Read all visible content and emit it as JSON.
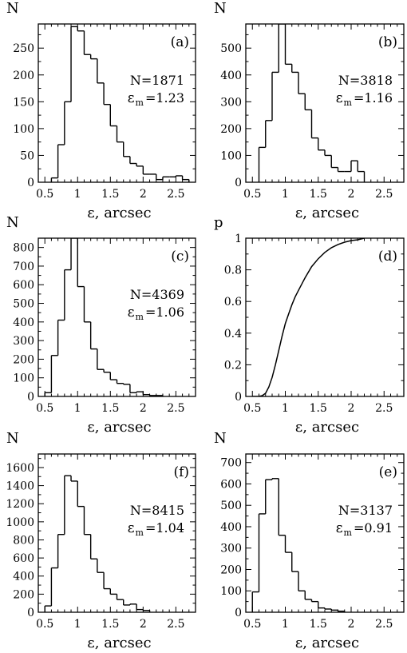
{
  "chart_data": [
    {
      "type": "histogram",
      "panel_label": "(a)",
      "ylabel": "N",
      "xlabel": "ε,  arcsec",
      "n_text": "N=1871",
      "em_symbol": "ε",
      "em_sub": "m",
      "em_value": "=1.23",
      "xlim": [
        0.4,
        2.8
      ],
      "ylim": [
        0,
        295
      ],
      "xticks": [
        0.5,
        1,
        1.5,
        2,
        2.5
      ],
      "xtick_labels": [
        "0.5",
        "1",
        "1.5",
        "2",
        "2.5"
      ],
      "yticks": [
        0,
        50,
        100,
        150,
        200,
        250
      ],
      "ytick_labels": [
        "0",
        "50",
        "100",
        "150",
        "200",
        "250"
      ],
      "bin_edges": [
        0.6,
        0.7,
        0.8,
        0.9,
        1.0,
        1.1,
        1.2,
        1.3,
        1.4,
        1.5,
        1.6,
        1.7,
        1.8,
        1.9,
        2.0,
        2.1,
        2.2,
        2.3,
        2.4,
        2.5,
        2.6,
        2.7
      ],
      "counts": [
        8,
        70,
        150,
        290,
        282,
        238,
        230,
        185,
        145,
        105,
        75,
        48,
        35,
        30,
        15,
        15,
        5,
        10,
        10,
        12,
        5
      ]
    },
    {
      "type": "histogram",
      "panel_label": "(b)",
      "ylabel": "N",
      "xlabel": "ε,  arcsec",
      "n_text": "N=3818",
      "em_symbol": "ε",
      "em_sub": "m",
      "em_value": "=1.16",
      "xlim": [
        0.4,
        2.8
      ],
      "ylim": [
        0,
        590
      ],
      "xticks": [
        0.5,
        1,
        1.5,
        2,
        2.5
      ],
      "xtick_labels": [
        "0.5",
        "1",
        "1.5",
        "2",
        "2.5"
      ],
      "yticks": [
        0,
        100,
        200,
        300,
        400,
        500
      ],
      "ytick_labels": [
        "0",
        "100",
        "200",
        "300",
        "400",
        "500"
      ],
      "bin_edges": [
        0.6,
        0.7,
        0.8,
        0.9,
        1.0,
        1.1,
        1.2,
        1.3,
        1.4,
        1.5,
        1.6,
        1.7,
        1.8,
        1.9,
        2.0,
        2.1,
        2.2
      ],
      "counts": [
        130,
        230,
        410,
        590,
        440,
        410,
        330,
        270,
        165,
        120,
        100,
        55,
        40,
        40,
        80,
        40
      ]
    },
    {
      "type": "histogram",
      "panel_label": "(c)",
      "ylabel": "N",
      "xlabel": "ε,  arcsec",
      "n_text": "N=4369",
      "em_symbol": "ε",
      "em_sub": "m",
      "em_value": "=1.06",
      "xlim": [
        0.4,
        2.8
      ],
      "ylim": [
        0,
        850
      ],
      "xticks": [
        0.5,
        1,
        1.5,
        2,
        2.5
      ],
      "xtick_labels": [
        "0.5",
        "1",
        "1.5",
        "2",
        "2.5"
      ],
      "yticks": [
        0,
        100,
        200,
        300,
        400,
        500,
        600,
        700,
        800
      ],
      "ytick_labels": [
        "0",
        "100",
        "200",
        "300",
        "400",
        "500",
        "600",
        "700",
        "800"
      ],
      "bin_edges": [
        0.5,
        0.6,
        0.7,
        0.8,
        0.9,
        1.0,
        1.1,
        1.2,
        1.3,
        1.4,
        1.5,
        1.6,
        1.7,
        1.8,
        1.9,
        2.0,
        2.1,
        2.2,
        2.3
      ],
      "counts": [
        20,
        220,
        410,
        680,
        850,
        590,
        400,
        255,
        145,
        130,
        90,
        70,
        65,
        20,
        25,
        10,
        5,
        5
      ]
    },
    {
      "type": "line",
      "panel_label": "(d)",
      "ylabel": "p",
      "xlabel": "ε,  arcsec",
      "xlim": [
        0.4,
        2.8
      ],
      "ylim": [
        0,
        1
      ],
      "xticks": [
        0.5,
        1,
        1.5,
        2,
        2.5
      ],
      "xtick_labels": [
        "0.5",
        "1",
        "1.5",
        "2",
        "2.5"
      ],
      "yticks": [
        0,
        0.2,
        0.4,
        0.6,
        0.8,
        1
      ],
      "ytick_labels": [
        "0",
        "0.2",
        "0.4",
        "0.6",
        "0.8",
        "1"
      ],
      "x": [
        0.5,
        0.6,
        0.65,
        0.7,
        0.75,
        0.8,
        0.85,
        0.9,
        0.95,
        1.0,
        1.05,
        1.1,
        1.15,
        1.2,
        1.3,
        1.4,
        1.5,
        1.6,
        1.7,
        1.8,
        1.9,
        2.0,
        2.1,
        2.2
      ],
      "y": [
        0,
        0,
        0.005,
        0.02,
        0.06,
        0.12,
        0.2,
        0.29,
        0.38,
        0.46,
        0.52,
        0.58,
        0.63,
        0.67,
        0.75,
        0.82,
        0.87,
        0.91,
        0.94,
        0.96,
        0.975,
        0.985,
        0.99,
        1.0
      ]
    },
    {
      "type": "histogram",
      "panel_label": "(f)",
      "ylabel": "N",
      "xlabel": "ε,  arcsec",
      "n_text": "N=8415",
      "em_symbol": "ε",
      "em_sub": "m",
      "em_value": "=1.04",
      "xlim": [
        0.4,
        2.8
      ],
      "ylim": [
        0,
        1750
      ],
      "xticks": [
        0.5,
        1,
        1.5,
        2,
        2.5
      ],
      "xtick_labels": [
        "0.5",
        "1",
        "1.5",
        "2",
        "2.5"
      ],
      "yticks": [
        0,
        200,
        400,
        600,
        800,
        1000,
        1200,
        1400,
        1600
      ],
      "ytick_labels": [
        "0",
        "200",
        "400",
        "600",
        "800",
        "1000",
        "1200",
        "1400",
        "1600"
      ],
      "bin_edges": [
        0.5,
        0.6,
        0.7,
        0.8,
        0.9,
        1.0,
        1.1,
        1.2,
        1.3,
        1.4,
        1.5,
        1.6,
        1.7,
        1.8,
        1.9,
        2.0,
        2.1
      ],
      "counts": [
        70,
        490,
        860,
        1510,
        1450,
        1170,
        860,
        590,
        440,
        260,
        200,
        140,
        80,
        90,
        30,
        20
      ]
    },
    {
      "type": "histogram",
      "panel_label": "(e)",
      "ylabel": "N",
      "xlabel": "ε,  arcsec",
      "n_text": "N=3137",
      "em_symbol": "ε",
      "em_sub": "m",
      "em_value": "=0.91",
      "xlim": [
        0.4,
        2.8
      ],
      "ylim": [
        0,
        740
      ],
      "xticks": [
        0.5,
        1,
        1.5,
        2,
        2.5
      ],
      "xtick_labels": [
        "0.5",
        "1",
        "1.5",
        "2",
        "2.5"
      ],
      "yticks": [
        0,
        100,
        200,
        300,
        400,
        500,
        600,
        700
      ],
      "ytick_labels": [
        "0",
        "100",
        "200",
        "300",
        "400",
        "500",
        "600",
        "700"
      ],
      "bin_edges": [
        0.5,
        0.6,
        0.7,
        0.8,
        0.9,
        1.0,
        1.1,
        1.2,
        1.3,
        1.4,
        1.5,
        1.6,
        1.7,
        1.8,
        1.9
      ],
      "counts": [
        95,
        460,
        620,
        625,
        360,
        280,
        190,
        100,
        60,
        50,
        20,
        15,
        10,
        5
      ]
    }
  ]
}
